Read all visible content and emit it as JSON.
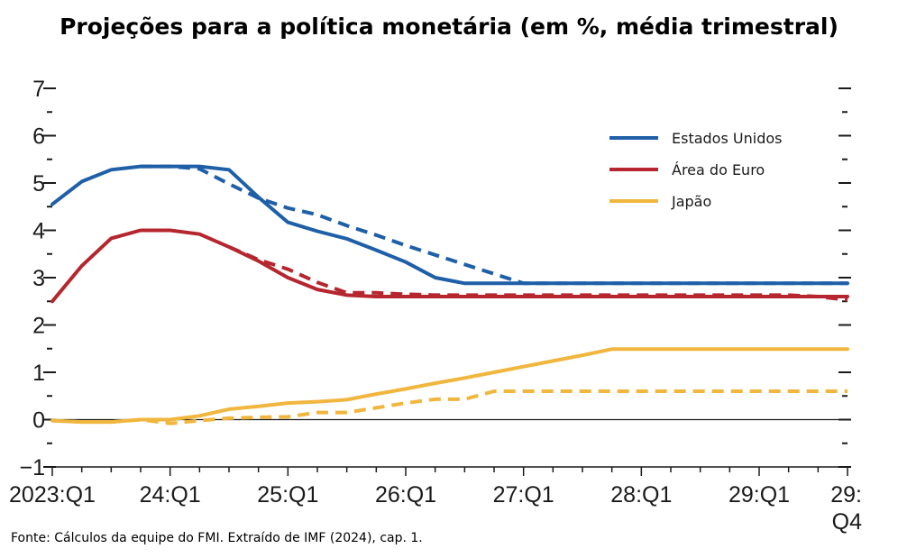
{
  "chart_data": {
    "type": "line",
    "title": "Projeções para a política monetária (em %, média trimestral)",
    "source": "Fonte: Cálculos da equipe do FMI. Extraído de IMF (2024), cap. 1.",
    "ylim": [
      -1,
      7
    ],
    "y_ticks": [
      "−1",
      "0",
      "1",
      "2",
      "3",
      "4",
      "5",
      "6",
      "7"
    ],
    "xlim": [
      0,
      27
    ],
    "x_tick_labels": [
      {
        "label": "2023:Q1",
        "x": 0
      },
      {
        "label": "24:Q1",
        "x": 4
      },
      {
        "label": "25:Q1",
        "x": 8
      },
      {
        "label": "26:Q1",
        "x": 12
      },
      {
        "label": "27:Q1",
        "x": 16
      },
      {
        "label": "28:Q1",
        "x": 20
      },
      {
        "label": "29:Q1",
        "x": 24
      },
      {
        "label": "29:\nQ4",
        "x": 27
      }
    ],
    "legend": [
      {
        "name": "Estados Unidos",
        "color": "#1f5fa8"
      },
      {
        "name": "Área do Euro",
        "color": "#b5262e"
      },
      {
        "name": "Japão",
        "color": "#f0b63e"
      }
    ],
    "series": [
      {
        "name": "Estados Unidos",
        "style": "solid",
        "color": "#1f5fa8",
        "points": [
          [
            0,
            4.55
          ],
          [
            1,
            5.03
          ],
          [
            2,
            5.28
          ],
          [
            3,
            5.35
          ],
          [
            4,
            5.35
          ],
          [
            5,
            5.35
          ],
          [
            6,
            5.28
          ],
          [
            7,
            4.7
          ],
          [
            8,
            4.17
          ],
          [
            9,
            3.98
          ],
          [
            10,
            3.82
          ],
          [
            11,
            3.58
          ],
          [
            12,
            3.33
          ],
          [
            13,
            3.0
          ],
          [
            14,
            2.88
          ],
          [
            15,
            2.88
          ],
          [
            16,
            2.88
          ],
          [
            17,
            2.88
          ],
          [
            18,
            2.88
          ],
          [
            19,
            2.88
          ],
          [
            20,
            2.88
          ],
          [
            21,
            2.88
          ],
          [
            22,
            2.88
          ],
          [
            23,
            2.88
          ],
          [
            24,
            2.88
          ],
          [
            25,
            2.88
          ],
          [
            26,
            2.88
          ],
          [
            27,
            2.88
          ]
        ]
      },
      {
        "name": "Estados Unidos",
        "style": "dashed",
        "color": "#1f5fa8",
        "points": [
          [
            3,
            5.35
          ],
          [
            4,
            5.35
          ],
          [
            5,
            5.3
          ],
          [
            6,
            4.98
          ],
          [
            7,
            4.68
          ],
          [
            8,
            4.47
          ],
          [
            9,
            4.33
          ],
          [
            10,
            4.1
          ],
          [
            11,
            3.9
          ],
          [
            12,
            3.68
          ],
          [
            13,
            3.48
          ],
          [
            14,
            3.28
          ],
          [
            15,
            3.08
          ],
          [
            16,
            2.88
          ],
          [
            17,
            2.88
          ],
          [
            18,
            2.88
          ],
          [
            19,
            2.88
          ],
          [
            20,
            2.88
          ],
          [
            21,
            2.88
          ],
          [
            22,
            2.88
          ],
          [
            23,
            2.88
          ],
          [
            24,
            2.88
          ],
          [
            25,
            2.88
          ],
          [
            26,
            2.88
          ],
          [
            27,
            2.88
          ]
        ]
      },
      {
        "name": "Área do Euro",
        "style": "solid",
        "color": "#b5262e",
        "points": [
          [
            0,
            2.5
          ],
          [
            1,
            3.25
          ],
          [
            2,
            3.83
          ],
          [
            3,
            4.0
          ],
          [
            4,
            4.0
          ],
          [
            5,
            3.92
          ],
          [
            6,
            3.65
          ],
          [
            7,
            3.35
          ],
          [
            8,
            3.0
          ],
          [
            9,
            2.75
          ],
          [
            10,
            2.63
          ],
          [
            11,
            2.6
          ],
          [
            12,
            2.6
          ],
          [
            13,
            2.6
          ],
          [
            14,
            2.6
          ],
          [
            15,
            2.6
          ],
          [
            16,
            2.6
          ],
          [
            17,
            2.6
          ],
          [
            18,
            2.6
          ],
          [
            19,
            2.6
          ],
          [
            20,
            2.6
          ],
          [
            21,
            2.6
          ],
          [
            22,
            2.6
          ],
          [
            23,
            2.6
          ],
          [
            24,
            2.6
          ],
          [
            25,
            2.6
          ],
          [
            26,
            2.6
          ],
          [
            27,
            2.6
          ]
        ]
      },
      {
        "name": "Área do Euro",
        "style": "dashed",
        "color": "#b5262e",
        "points": [
          [
            6,
            3.65
          ],
          [
            7,
            3.38
          ],
          [
            8,
            3.18
          ],
          [
            9,
            2.9
          ],
          [
            10,
            2.68
          ],
          [
            11,
            2.68
          ],
          [
            12,
            2.65
          ],
          [
            13,
            2.63
          ],
          [
            14,
            2.63
          ],
          [
            15,
            2.63
          ],
          [
            16,
            2.63
          ],
          [
            17,
            2.63
          ],
          [
            18,
            2.63
          ],
          [
            19,
            2.63
          ],
          [
            20,
            2.63
          ],
          [
            21,
            2.63
          ],
          [
            22,
            2.63
          ],
          [
            23,
            2.63
          ],
          [
            24,
            2.63
          ],
          [
            25,
            2.63
          ],
          [
            26,
            2.6
          ],
          [
            27,
            2.53
          ]
        ]
      },
      {
        "name": "Japão",
        "style": "solid",
        "color": "#f0b63e",
        "points": [
          [
            0,
            -0.02
          ],
          [
            1,
            -0.05
          ],
          [
            2,
            -0.05
          ],
          [
            3,
            0.0
          ],
          [
            4,
            0.0
          ],
          [
            5,
            0.08
          ],
          [
            6,
            0.22
          ],
          [
            7,
            0.28
          ],
          [
            8,
            0.35
          ],
          [
            9,
            0.38
          ],
          [
            10,
            0.42
          ],
          [
            11,
            0.54
          ],
          [
            12,
            0.65
          ],
          [
            13,
            0.77
          ],
          [
            14,
            0.88
          ],
          [
            15,
            1.0
          ],
          [
            16,
            1.12
          ],
          [
            17,
            1.24
          ],
          [
            18,
            1.36
          ],
          [
            19,
            1.49
          ],
          [
            20,
            1.49
          ],
          [
            21,
            1.49
          ],
          [
            22,
            1.49
          ],
          [
            23,
            1.49
          ],
          [
            24,
            1.49
          ],
          [
            25,
            1.49
          ],
          [
            26,
            1.49
          ],
          [
            27,
            1.49
          ]
        ]
      },
      {
        "name": "Japão",
        "style": "dashed",
        "color": "#f0b63e",
        "points": [
          [
            0,
            -0.02
          ],
          [
            1,
            -0.05
          ],
          [
            2,
            -0.05
          ],
          [
            3,
            0.0
          ],
          [
            4,
            -0.08
          ],
          [
            5,
            -0.02
          ],
          [
            6,
            0.03
          ],
          [
            7,
            0.05
          ],
          [
            8,
            0.06
          ],
          [
            9,
            0.15
          ],
          [
            10,
            0.15
          ],
          [
            11,
            0.25
          ],
          [
            12,
            0.35
          ],
          [
            13,
            0.43
          ],
          [
            14,
            0.43
          ],
          [
            15,
            0.6
          ],
          [
            16,
            0.6
          ],
          [
            17,
            0.6
          ],
          [
            18,
            0.6
          ],
          [
            19,
            0.6
          ],
          [
            20,
            0.6
          ],
          [
            21,
            0.6
          ],
          [
            22,
            0.6
          ],
          [
            23,
            0.6
          ],
          [
            24,
            0.6
          ],
          [
            25,
            0.6
          ],
          [
            26,
            0.6
          ],
          [
            27,
            0.6
          ]
        ]
      }
    ]
  }
}
